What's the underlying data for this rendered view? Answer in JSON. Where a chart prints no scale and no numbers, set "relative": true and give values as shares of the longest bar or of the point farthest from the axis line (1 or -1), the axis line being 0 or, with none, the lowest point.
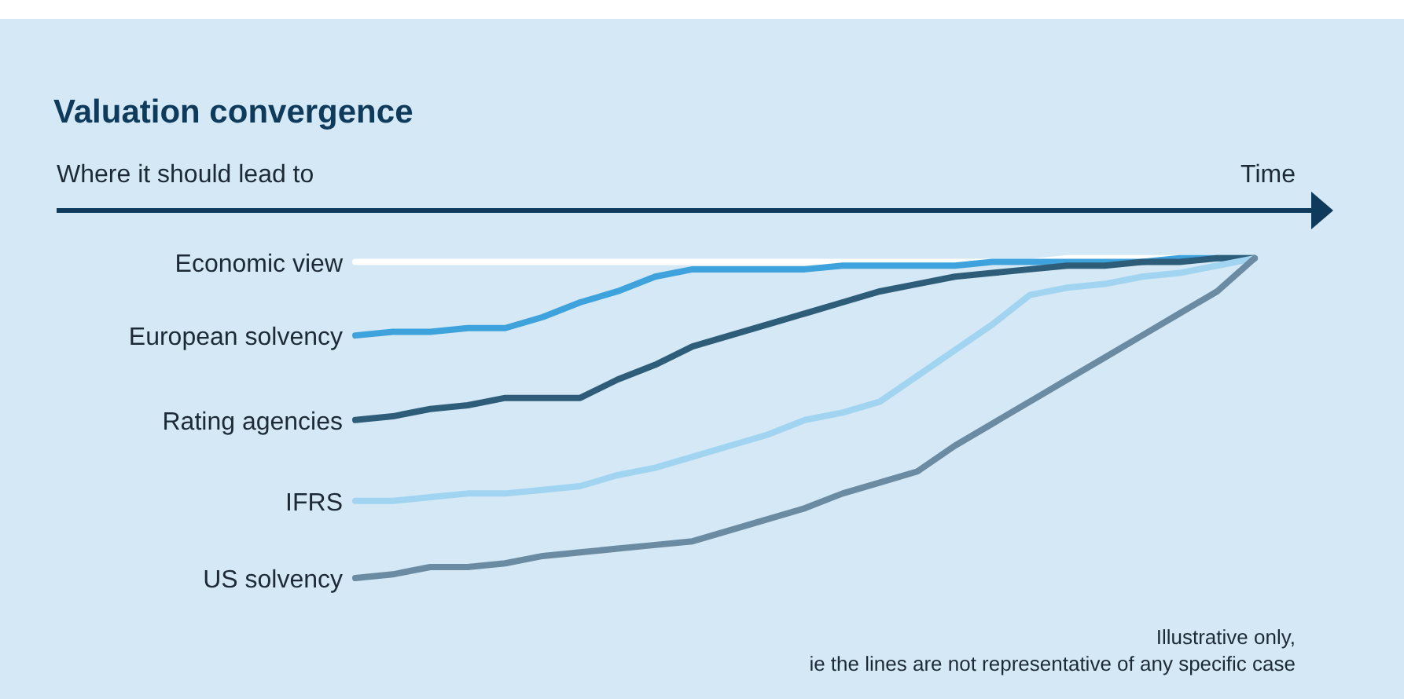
{
  "chart_data": {
    "type": "line",
    "title": "Valuation convergence",
    "subtitle": "Where it should lead to",
    "xlabel": "Time",
    "relative": true,
    "categories": [
      null,
      null,
      null,
      null,
      null,
      null,
      null,
      null,
      null,
      null,
      null,
      null,
      null,
      null,
      null,
      null,
      null,
      null,
      null,
      null,
      null,
      null,
      null,
      null,
      null
    ],
    "series": [
      {
        "name": "Economic view",
        "color": "#ffffff",
        "values": [
          -0.14,
          -0.14,
          -0.14,
          -0.14,
          -0.14,
          -0.14,
          -0.14,
          -0.14,
          -0.14,
          -0.14,
          -0.14,
          -0.14,
          -0.14,
          -0.14,
          -0.14,
          -0.14,
          -0.14,
          -0.14,
          -0.14,
          -0.13,
          -0.13,
          -0.13,
          -0.13,
          -0.13,
          -0.13
        ]
      },
      {
        "name": "European solvency",
        "color": "#3ea2dc",
        "values": [
          -0.34,
          -0.33,
          -0.33,
          -0.32,
          -0.32,
          -0.29,
          -0.25,
          -0.22,
          -0.18,
          -0.16,
          -0.16,
          -0.16,
          -0.16,
          -0.15,
          -0.15,
          -0.15,
          -0.15,
          -0.14,
          -0.14,
          -0.14,
          -0.14,
          -0.14,
          -0.13,
          -0.13,
          -0.13
        ]
      },
      {
        "name": "Rating agencies",
        "color": "#2d5d78",
        "values": [
          -0.57,
          -0.56,
          -0.54,
          -0.53,
          -0.51,
          -0.51,
          -0.51,
          -0.46,
          -0.42,
          -0.37,
          -0.34,
          -0.31,
          -0.28,
          -0.25,
          -0.22,
          -0.2,
          -0.18,
          -0.17,
          -0.16,
          -0.15,
          -0.15,
          -0.14,
          -0.14,
          -0.13,
          -0.13
        ]
      },
      {
        "name": "IFRS",
        "color": "#a0d4f0",
        "values": [
          -0.79,
          -0.79,
          -0.78,
          -0.77,
          -0.77,
          -0.76,
          -0.75,
          -0.72,
          -0.7,
          -0.67,
          -0.64,
          -0.61,
          -0.57,
          -0.55,
          -0.52,
          -0.45,
          -0.38,
          -0.31,
          -0.23,
          -0.21,
          -0.2,
          -0.18,
          -0.17,
          -0.15,
          -0.13
        ]
      },
      {
        "name": "US solvency",
        "color": "#6a8ba2",
        "values": [
          -1,
          -0.99,
          -0.97,
          -0.97,
          -0.96,
          -0.94,
          -0.93,
          -0.92,
          -0.91,
          -0.9,
          -0.87,
          -0.84,
          -0.81,
          -0.77,
          -0.74,
          -0.71,
          -0.64,
          -0.58,
          -0.52,
          -0.46,
          -0.4,
          -0.34,
          -0.28,
          -0.22,
          -0.13
        ]
      }
    ],
    "annotations": [
      "Illustrative only,",
      "ie the lines are not representative of any specific case"
    ]
  }
}
